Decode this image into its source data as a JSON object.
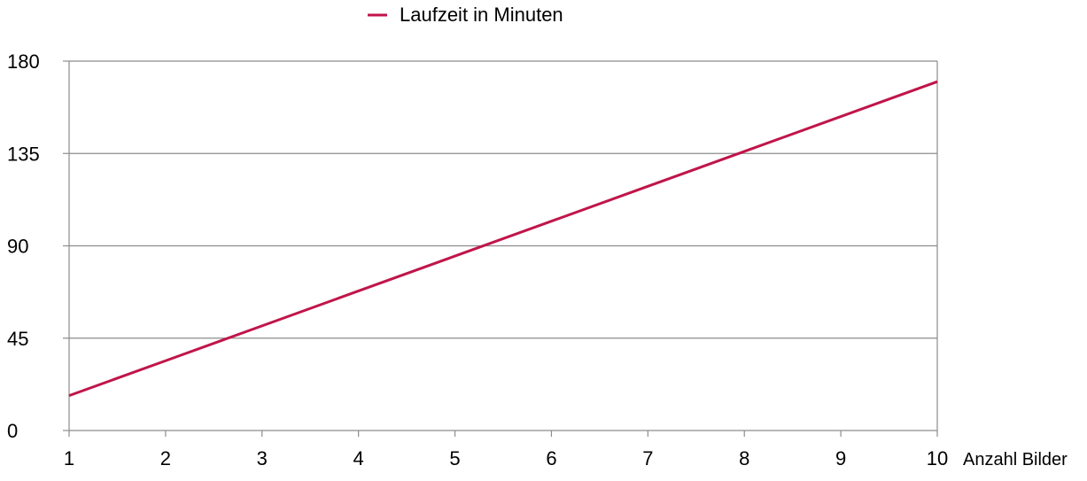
{
  "chart_data": {
    "type": "line",
    "title": "",
    "xlabel": "Anzahl Bilder",
    "ylabel": "",
    "x": [
      1,
      2,
      3,
      4,
      5,
      6,
      7,
      8,
      9,
      10
    ],
    "xlim": [
      1,
      10
    ],
    "ylim": [
      0,
      180
    ],
    "x_ticks": [
      1,
      2,
      3,
      4,
      5,
      6,
      7,
      8,
      9,
      10
    ],
    "y_ticks": [
      0,
      45,
      90,
      135,
      180
    ],
    "series": [
      {
        "name": "Laufzeit in Minuten",
        "color": "#c0154a",
        "values": [
          17,
          34,
          51,
          68,
          85,
          102,
          119,
          136,
          153,
          170
        ]
      }
    ],
    "grid": "horizontal",
    "legend": "top-center"
  }
}
